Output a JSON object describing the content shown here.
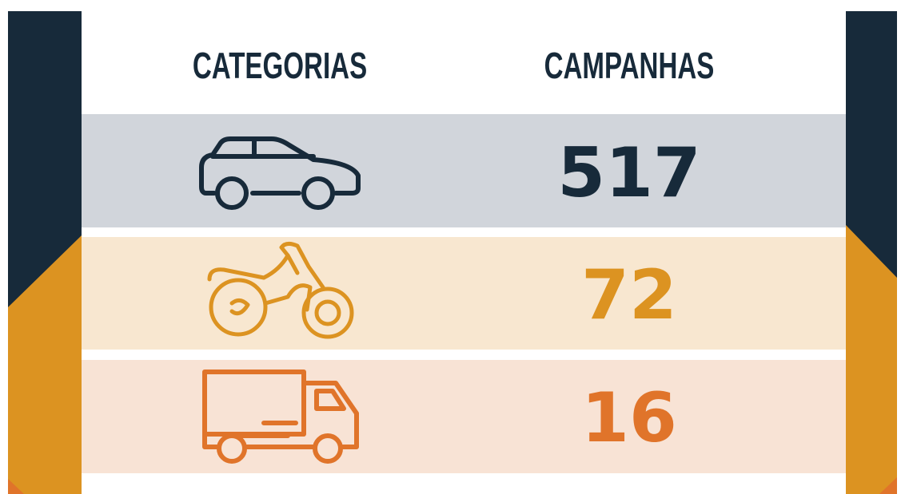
{
  "table": {
    "headers": [
      "CATEGORIAS",
      "CAMPANHAS"
    ],
    "rows": [
      {
        "value": 517
      },
      {
        "value": 72
      },
      {
        "value": 16
      }
    ]
  }
}
